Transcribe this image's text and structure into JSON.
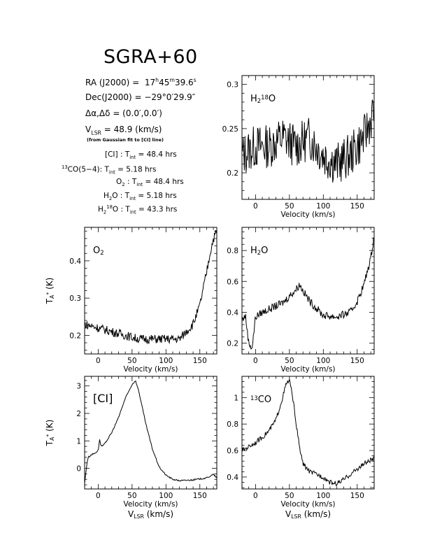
{
  "header": {
    "title": "SGRA+60",
    "ra": {
      "label": "RA (J2000)",
      "h": "17",
      "m": "45",
      "s": "39.6",
      "hsup": "h",
      "msup": "m",
      "ssup": "s"
    },
    "dec": {
      "label": "Dec(J2000)",
      "value": "= −29°0′29.9″"
    },
    "offset": {
      "label": "Δα,Δδ",
      "value": "= (0.0′,0.0′)"
    },
    "vlsr": {
      "label": "V",
      "sub": "LSR",
      "value": " = 48.9  (km/s)"
    },
    "fit_note": "(from Gaussian fit to [CI] line)",
    "integrations": [
      {
        "pre": "",
        "sup": "",
        "name": "[CI] : T",
        "sub": "int",
        "value": " = 48.4 hrs"
      },
      {
        "pre": "13",
        "sup": "",
        "name": "CO(5−4): T",
        "sub": "int",
        "value": " = 5.18 hrs"
      },
      {
        "pre": "",
        "sup": "",
        "name": "O",
        "name_sub": "2",
        "name2": " : T",
        "sub": "int",
        "value": " = 48.4 hrs"
      },
      {
        "pre": "",
        "sup": "",
        "name": "H",
        "name_sub": "2",
        "name2": "O : T",
        "sub": "int",
        "value": " = 5.18 hrs"
      },
      {
        "pre": "",
        "sup": "",
        "name": "H",
        "name_sub": "2",
        "name_sup": "18",
        "name2": "O : T",
        "sub": "int",
        "value": " = 43.3 hrs"
      }
    ]
  },
  "axis_labels": {
    "velocity": "Velocity (km/s)",
    "vlsr_main": "V",
    "vlsr_sub": "LSR",
    "vlsr_unit": " (km/s)",
    "ta_main": "T",
    "ta_sub": "A",
    "ta_sup": "*",
    "ta_unit": " (K)"
  },
  "chart_data": [
    {
      "id": "h218o",
      "type": "line",
      "label_main": "H",
      "label_sub": "2",
      "label_sup": "18",
      "label_tail": "O",
      "xlim": [
        -20,
        175
      ],
      "ylim": [
        0.17,
        0.31
      ],
      "xticks": [
        0,
        50,
        100,
        150
      ],
      "yticks": [
        0.2,
        0.25,
        0.3
      ],
      "ytick_labels": [
        "0.2",
        "0.25",
        "0.3"
      ],
      "x": [
        -20,
        0,
        20,
        40,
        60,
        80,
        100,
        120,
        140,
        160,
        175
      ],
      "y": [
        0.22,
        0.23,
        0.23,
        0.24,
        0.23,
        0.24,
        0.22,
        0.21,
        0.22,
        0.24,
        0.27
      ],
      "noise": 0.025,
      "xlabel": "Velocity (km/s)",
      "ylabel": ""
    },
    {
      "id": "o2",
      "type": "line",
      "label_main": "O",
      "label_sub": "2",
      "label_sup": "",
      "label_tail": "",
      "xlim": [
        -20,
        175
      ],
      "ylim": [
        0.15,
        0.49
      ],
      "xticks": [
        0,
        50,
        100,
        150
      ],
      "yticks": [
        0.2,
        0.3,
        0.4
      ],
      "ytick_labels": [
        "0.2",
        "0.3",
        "0.4"
      ],
      "x": [
        -20,
        0,
        20,
        40,
        60,
        80,
        100,
        120,
        130,
        140,
        150,
        160,
        165,
        170,
        175
      ],
      "y": [
        0.23,
        0.22,
        0.21,
        0.2,
        0.19,
        0.19,
        0.19,
        0.19,
        0.21,
        0.23,
        0.28,
        0.37,
        0.42,
        0.46,
        0.48
      ],
      "noise": 0.012,
      "xlabel": "Velocity (km/s)",
      "ylabel": "T_A* (K)"
    },
    {
      "id": "h2o",
      "type": "line",
      "label_main": "H",
      "label_sub": "2",
      "label_sup": "",
      "label_tail": "O",
      "xlim": [
        -20,
        175
      ],
      "ylim": [
        0.13,
        0.95
      ],
      "xticks": [
        0,
        50,
        100,
        150
      ],
      "yticks": [
        0.2,
        0.4,
        0.6,
        0.8
      ],
      "ytick_labels": [
        "0.2",
        "0.4",
        "0.6",
        "0.8"
      ],
      "x": [
        -20,
        -15,
        -10,
        -5,
        0,
        10,
        20,
        40,
        60,
        65,
        70,
        80,
        100,
        120,
        140,
        150,
        160,
        170,
        175
      ],
      "y": [
        0.35,
        0.38,
        0.2,
        0.17,
        0.37,
        0.4,
        0.42,
        0.46,
        0.55,
        0.58,
        0.54,
        0.47,
        0.38,
        0.37,
        0.4,
        0.47,
        0.58,
        0.75,
        0.9
      ],
      "noise": 0.025,
      "xlabel": "Velocity (km/s)",
      "ylabel": ""
    },
    {
      "id": "ci",
      "type": "line",
      "label_main": "[CI]",
      "label_sub": "",
      "label_sup": "",
      "label_tail": "",
      "xlim": [
        -20,
        175
      ],
      "ylim": [
        -0.75,
        3.35
      ],
      "xticks": [
        0,
        50,
        100,
        150
      ],
      "yticks": [
        0,
        1,
        2,
        3
      ],
      "ytick_labels": [
        "0",
        "1",
        "2",
        "3"
      ],
      "x": [
        -20,
        -17,
        -15,
        -12,
        -10,
        -5,
        0,
        2,
        4,
        6,
        10,
        20,
        30,
        40,
        50,
        55,
        60,
        70,
        80,
        90,
        100,
        110,
        120,
        140,
        160,
        170,
        175
      ],
      "y": [
        -0.55,
        0.1,
        0.4,
        0.45,
        0.5,
        0.55,
        0.65,
        1.05,
        0.85,
        0.8,
        0.9,
        1.3,
        1.85,
        2.55,
        3.05,
        3.2,
        2.8,
        1.65,
        0.7,
        0.05,
        -0.25,
        -0.4,
        -0.45,
        -0.42,
        -0.35,
        -0.22,
        -0.35
      ],
      "noise": 0.025,
      "xlabel": "Velocity (km/s)",
      "ylabel": "T_A* (K)"
    },
    {
      "id": "13co",
      "type": "line",
      "label_main": "CO",
      "label_sub": "",
      "label_sup": "13",
      "label_tail": "",
      "label_sup_first": true,
      "xlim": [
        -20,
        175
      ],
      "ylim": [
        0.31,
        1.16
      ],
      "xticks": [
        0,
        50,
        100,
        150
      ],
      "yticks": [
        0.4,
        0.6,
        0.8,
        1
      ],
      "ytick_labels": [
        "0.4",
        "0.6",
        "0.8",
        "1"
      ],
      "x": [
        -20,
        -10,
        0,
        10,
        20,
        30,
        40,
        45,
        50,
        55,
        60,
        65,
        70,
        80,
        90,
        100,
        110,
        120,
        130,
        140,
        150,
        160,
        175
      ],
      "y": [
        0.6,
        0.63,
        0.66,
        0.7,
        0.75,
        0.83,
        1.0,
        1.1,
        1.13,
        1.0,
        0.8,
        0.62,
        0.5,
        0.44,
        0.42,
        0.4,
        0.36,
        0.35,
        0.38,
        0.42,
        0.46,
        0.5,
        0.54
      ],
      "noise": 0.018,
      "xlabel": "Velocity (km/s)",
      "ylabel": ""
    }
  ]
}
